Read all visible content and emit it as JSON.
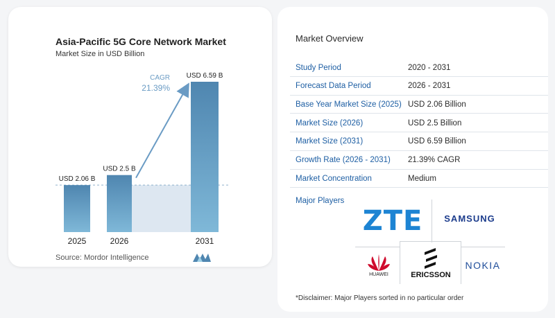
{
  "chart_data": {
    "type": "bar",
    "title": "Asia-Pacific 5G Core Network Market",
    "subtitle": "Market Size in USD Billion",
    "categories": [
      "2025",
      "2026",
      "2031"
    ],
    "values": [
      2.06,
      2.5,
      6.59
    ],
    "data_labels": [
      "USD 2.06 B",
      "USD 2.5 B",
      "USD 6.59 B"
    ],
    "cagr_label": "CAGR",
    "cagr_value": "21.39%",
    "colors": {
      "bar_dark": "#4f86b0",
      "bar_light": "#7fb8d8",
      "arrow": "#6a9bc4",
      "shade": "#dde7f1"
    }
  },
  "source": "Source:  Mordor Intelligence",
  "overview": {
    "title": "Market Overview",
    "rows": [
      {
        "label": "Study Period",
        "value": "2020 - 2031"
      },
      {
        "label": "Forecast Data Period",
        "value": "2026 - 2031"
      },
      {
        "label": "Base Year Market Size (2025)",
        "value": "USD 2.06 Billion"
      },
      {
        "label": "Market Size (2026)",
        "value": "USD 2.5 Billion"
      },
      {
        "label": "Market Size (2031)",
        "value": "USD 6.59 Billion"
      },
      {
        "label": "Growth Rate (2026 - 2031)",
        "value": "21.39% CAGR"
      },
      {
        "label": "Market Concentration",
        "value": "Medium"
      }
    ]
  },
  "players": {
    "label": "Major Players",
    "logos": {
      "zte": "ZTE",
      "samsung": "SAMSUNG",
      "huawei": "HUAWEI",
      "ericsson": "ERICSSON",
      "nokia": "NOKIA"
    }
  },
  "disclaimer": "*Disclaimer: Major Players sorted in no particular order"
}
